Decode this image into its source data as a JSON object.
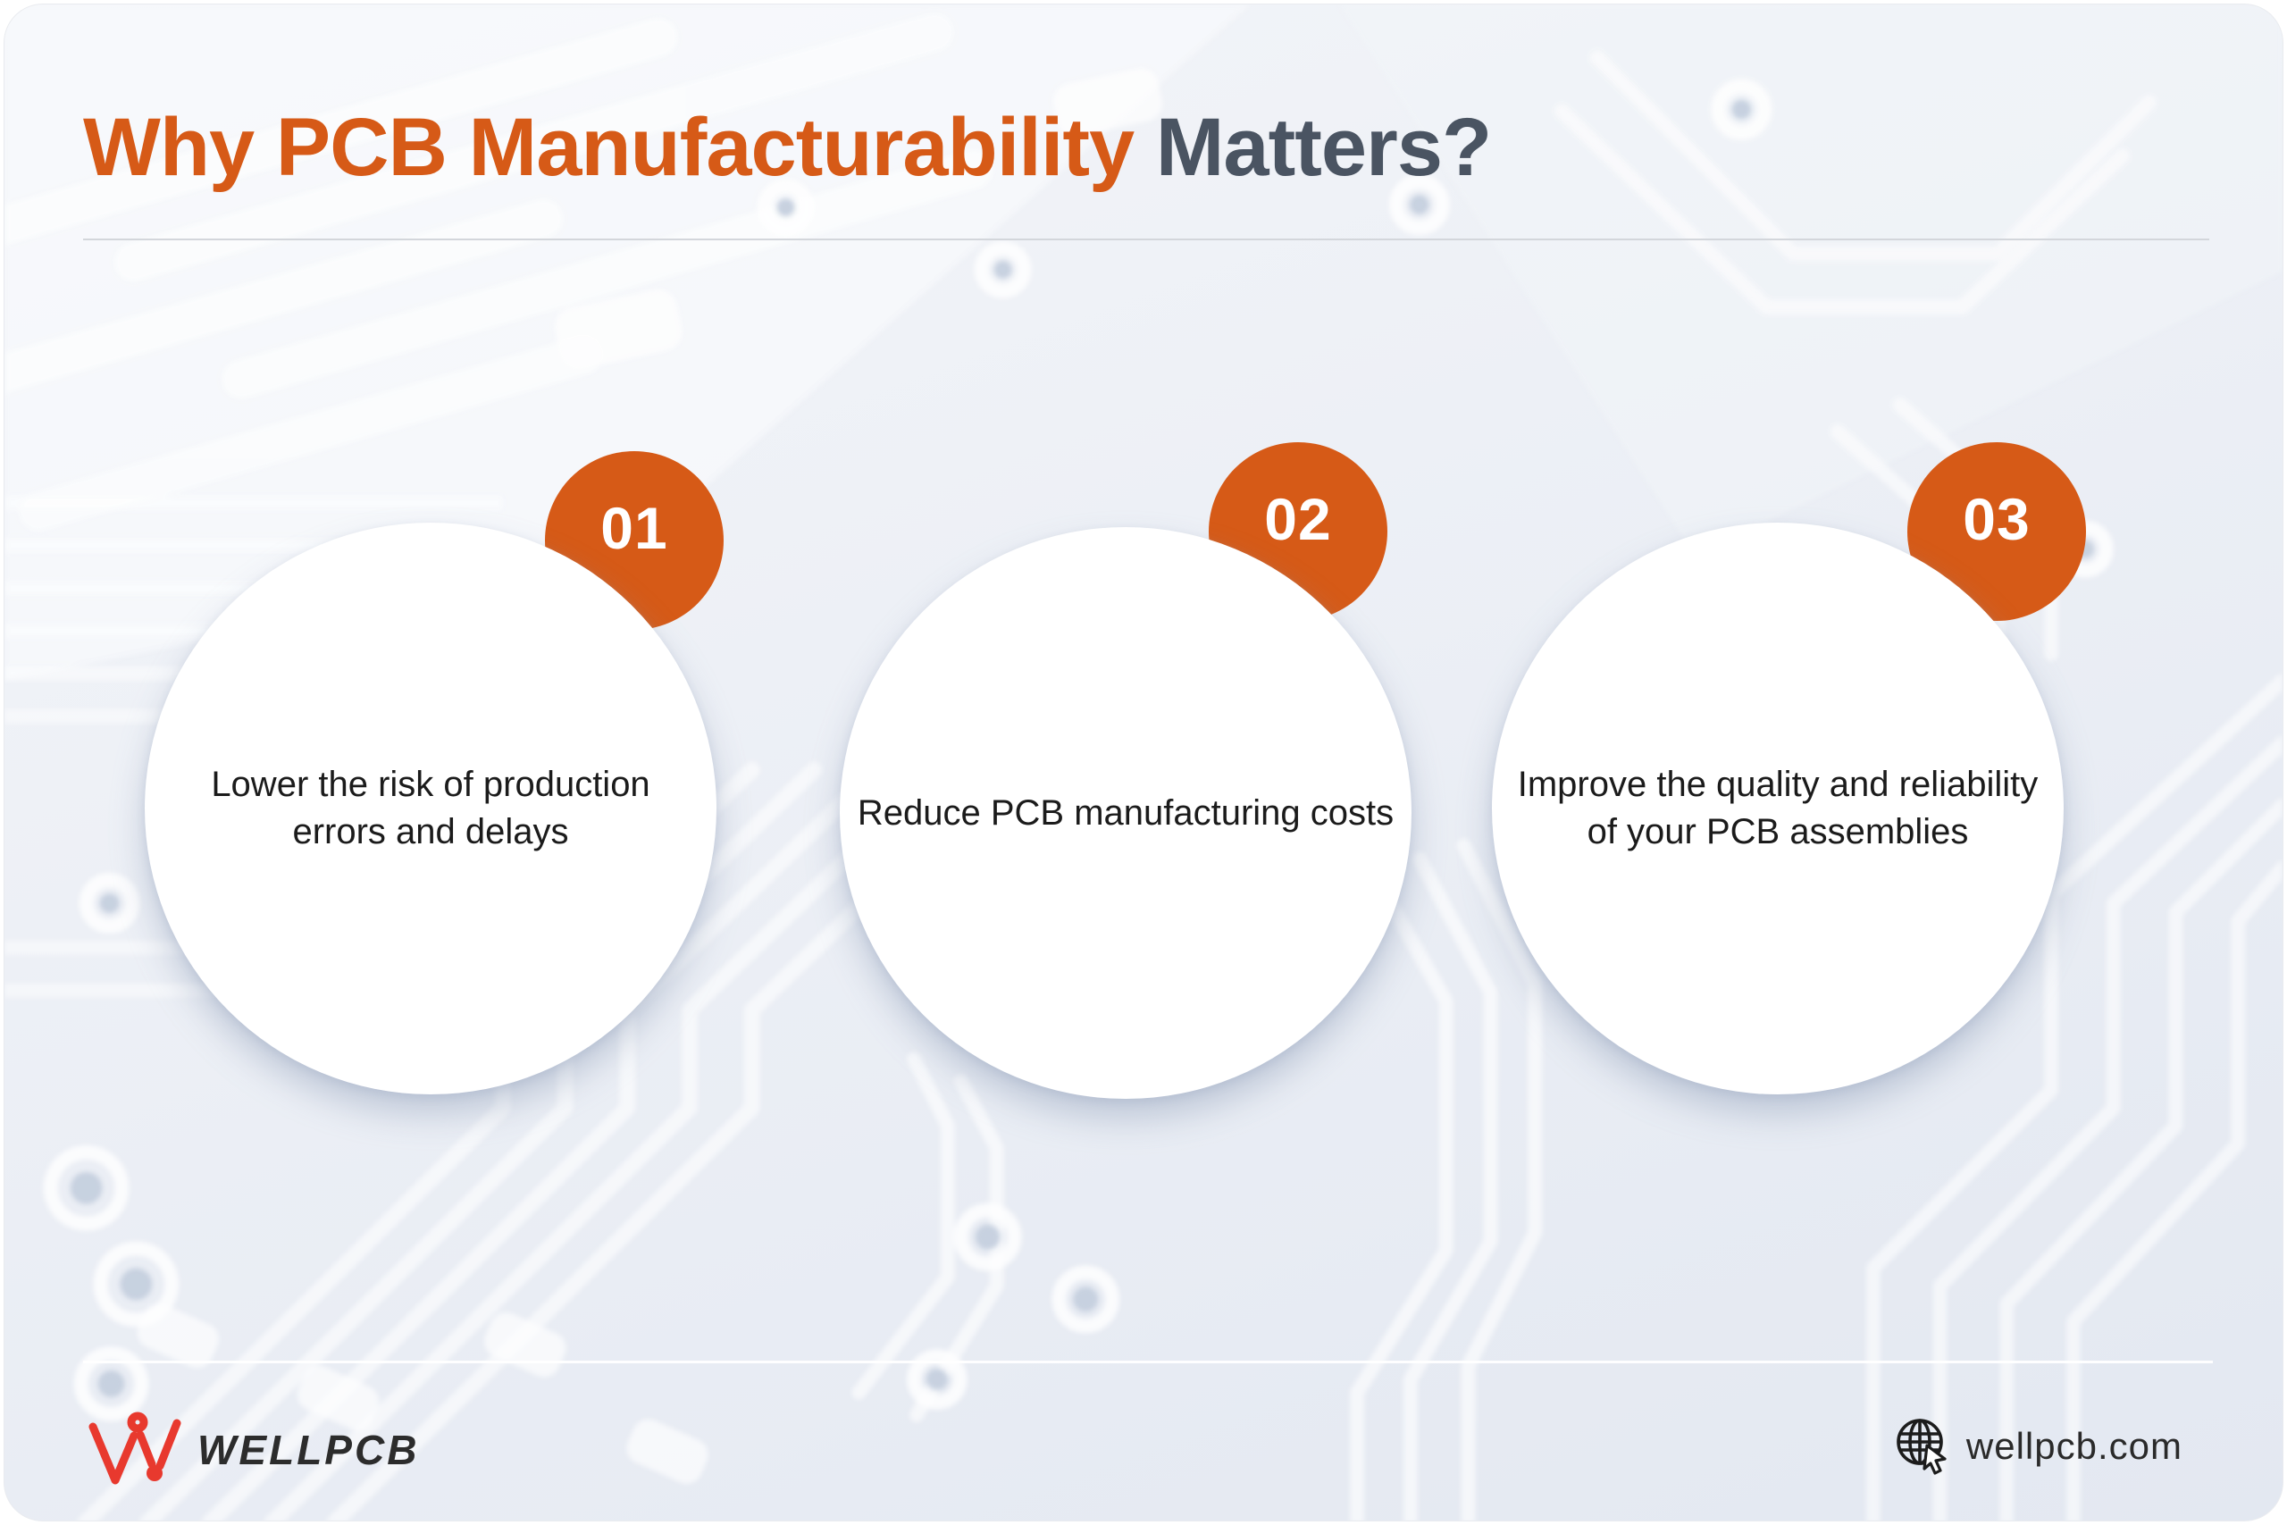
{
  "title": {
    "highlight": "Why PCB Manufacturability",
    "secondary": " Matters?"
  },
  "benefits": [
    {
      "number": "01",
      "lines": [
        "Lower the risk of production",
        "errors and delays"
      ]
    },
    {
      "number": "02",
      "lines": [
        "Reduce PCB manufacturing costs"
      ]
    },
    {
      "number": "03",
      "lines": [
        "Improve the quality and reliability",
        "of your PCB assemblies"
      ]
    }
  ],
  "footer": {
    "brand": "WELLPCB",
    "website": "wellpcb.com"
  },
  "colors": {
    "accent_orange": "#D65A17",
    "title_dark": "#4A5462",
    "logo_red": "#E8392E",
    "body_text": "#1B1B1B",
    "background_tint": "#E7EBF3"
  }
}
